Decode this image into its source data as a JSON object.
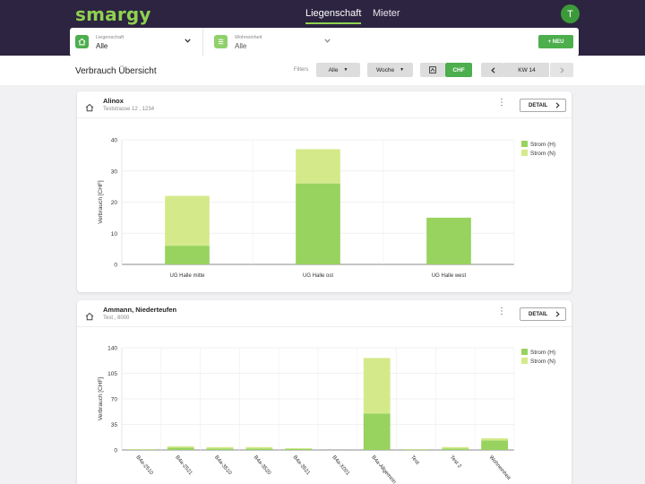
{
  "app": {
    "logo": "smargy",
    "user_initial": "T"
  },
  "nav": {
    "tabs": [
      {
        "label": "Liegenschaft",
        "active": true
      },
      {
        "label": "Mieter",
        "active": false
      }
    ]
  },
  "filterbar": {
    "liegenschaft_label": "Liegenschaft",
    "liegenschaft_value": "Alle",
    "wohneinheit_label": "Wohneinheit",
    "wohneinheit_value": "Alle",
    "new_button": "+ NEU"
  },
  "toolbar": {
    "title": "Verbrauch Übersicht",
    "filters_label": "Filters",
    "filter_scope": "Alle",
    "filter_period": "Woche",
    "chf_label": "CHF",
    "week_label": "KW 14"
  },
  "colors": {
    "accent": "#4cae4c",
    "strom_h": "#97d35e",
    "strom_n": "#d4ea8a",
    "header": "#2c2440"
  },
  "cards": [
    {
      "title": "Alinox",
      "subtitle": "Teststrasse 12 , 1234",
      "detail_label": "DETAIL"
    },
    {
      "title": "Ammann, Niederteufen",
      "subtitle": "Test , 8000",
      "detail_label": "DETAIL"
    }
  ],
  "chart_data": [
    {
      "type": "bar",
      "stacked": true,
      "ylabel": "Verbrauch [CHF]",
      "ylim": [
        0,
        40
      ],
      "yticks": [
        0,
        10,
        20,
        30,
        40
      ],
      "categories": [
        "UG Halle mitte",
        "UG Halle ost",
        "UG Halle west"
      ],
      "series": [
        {
          "name": "Strom (H)",
          "color": "#97d35e",
          "values": [
            6,
            26,
            15
          ]
        },
        {
          "name": "Strom (N)",
          "color": "#d4ea8a",
          "values": [
            16,
            11,
            0
          ]
        }
      ],
      "legend": "right",
      "grid": true
    },
    {
      "type": "bar",
      "stacked": true,
      "ylabel": "Verbrauch [CHF]",
      "ylim": [
        0,
        140
      ],
      "yticks": [
        0,
        35,
        70,
        105,
        140
      ],
      "categories": [
        "B4a-2510",
        "B4a-2521",
        "B4a-3510",
        "B4a-3520",
        "B4a-3521",
        "B4a-X001",
        "B4a-Allgemein",
        "Test",
        "Test 2",
        "Wohneinheit"
      ],
      "series": [
        {
          "name": "Strom (H)",
          "color": "#97d35e",
          "values": [
            0.5,
            3,
            2,
            2,
            1.5,
            0,
            50,
            0.5,
            2,
            13
          ]
        },
        {
          "name": "Strom (N)",
          "color": "#d4ea8a",
          "values": [
            0.5,
            2,
            2,
            2,
            1,
            0,
            76,
            0.5,
            2,
            3
          ]
        }
      ],
      "legend": "right",
      "grid": true
    }
  ]
}
